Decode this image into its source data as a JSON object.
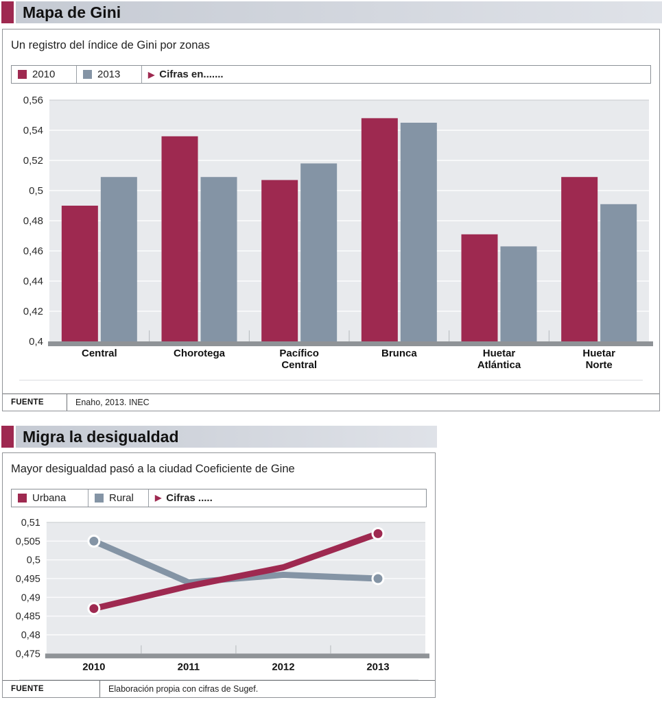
{
  "colors": {
    "accent_maroon": "#9e2950",
    "secondary_bluegray": "#8494a5",
    "plot_background": "#e8eaed",
    "baseline_shadow": "#8f9397"
  },
  "charts": [
    {
      "title": "Mapa de Gini",
      "subtitle": "Un registro del índice de Gini por zonas",
      "legend_note": "Cifras en.......",
      "fuente_label": "FUENTE",
      "fuente_text": "Enaho, 2013. INEC",
      "chart_data": {
        "type": "bar",
        "categories": [
          "Central",
          "Chorotega",
          "Pacífico Central",
          "Brunca",
          "Huetar Atlántica",
          "Huetar Norte"
        ],
        "series": [
          {
            "name": "2010",
            "color": "#9e2950",
            "values": [
              0.49,
              0.536,
              0.507,
              0.548,
              0.471,
              0.509
            ]
          },
          {
            "name": "2013",
            "color": "#8494a5",
            "values": [
              0.509,
              0.509,
              0.518,
              0.545,
              0.463,
              0.491
            ]
          }
        ],
        "ylim": [
          0.4,
          0.56
        ],
        "ytick_step": 0.02,
        "grid": true,
        "legend_position": "top",
        "decimal_separator": ","
      }
    },
    {
      "title": "Migra la desigualdad",
      "subtitle": "Mayor desigualdad pasó a la ciudad Coeficiente de Gine",
      "legend_note": "Cifras .....",
      "fuente_label": "FUENTE",
      "fuente_text": "Elaboración propia con cifras de Sugef.",
      "chart_data": {
        "type": "line",
        "x": [
          "2010",
          "2011",
          "2012",
          "2013"
        ],
        "series": [
          {
            "name": "Urbana",
            "color": "#9e2950",
            "values": [
              0.487,
              0.493,
              0.498,
              0.507
            ],
            "markers": [
              0,
              3
            ]
          },
          {
            "name": "Rural",
            "color": "#8494a5",
            "values": [
              0.505,
              0.494,
              0.496,
              0.495
            ],
            "markers": [
              0,
              3
            ]
          }
        ],
        "ylim": [
          0.475,
          0.51
        ],
        "ytick_step": 0.005,
        "grid": true,
        "legend_position": "top",
        "decimal_separator": ","
      }
    }
  ]
}
